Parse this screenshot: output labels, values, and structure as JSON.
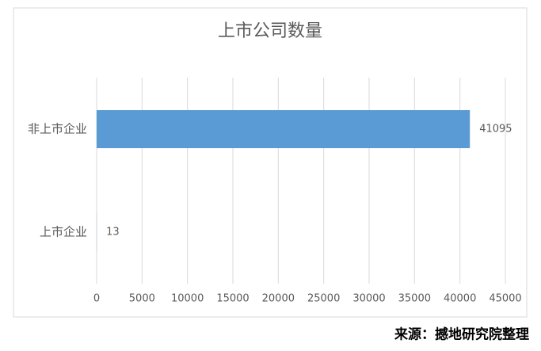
{
  "chart_data": {
    "type": "bar",
    "orientation": "horizontal",
    "title": "上市公司数量",
    "categories": [
      "非上市企业",
      "上市企业"
    ],
    "values": [
      41095,
      13
    ],
    "color": "#5b9bd5",
    "xlim": [
      0,
      45000
    ],
    "xticks": [
      0,
      5000,
      10000,
      15000,
      20000,
      25000,
      30000,
      35000,
      40000,
      45000
    ],
    "grid": true
  },
  "source": "来源：撼地研究院整理"
}
